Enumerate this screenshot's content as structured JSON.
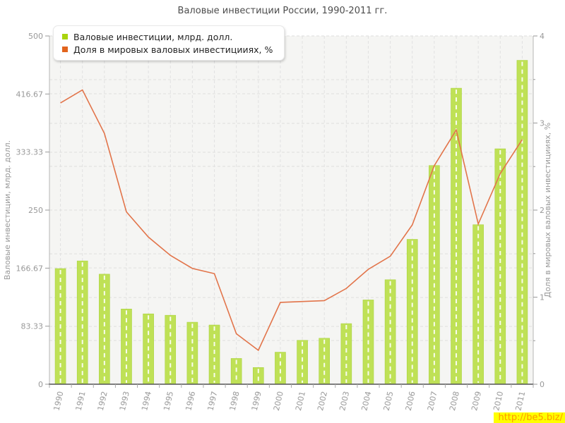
{
  "page": {
    "title": "Валовые инвестиции России, 1990-2011 гг."
  },
  "legend": {
    "items": [
      {
        "label": "Валовые инвестиции, млрд. долл.",
        "color": "#a9d40e"
      },
      {
        "label": "Доля в мировых валовых инвестицииях, %",
        "color": "#e2641d"
      }
    ]
  },
  "watermark": {
    "text": "http://be5.biz/",
    "bg": "#ffff00",
    "fg": "#ff9900"
  },
  "chart_data": {
    "type": "bar",
    "title": "Валовые инвестиции России, 1990-2011 гг.",
    "categories": [
      "1990",
      "1991",
      "1992",
      "1993",
      "1994",
      "1995",
      "1996",
      "1997",
      "1998",
      "1999",
      "2000",
      "2001",
      "2002",
      "2003",
      "2004",
      "2005",
      "2006",
      "2007",
      "2008",
      "2009",
      "2010",
      "2011"
    ],
    "series": [
      {
        "name": "Валовые инвестиции, млрд. долл.",
        "type": "bar",
        "axis": "left",
        "color": "#bfe156",
        "edge_color": "#aad33f",
        "values": [
          166,
          177,
          158,
          108,
          101,
          99,
          89,
          85,
          37,
          24,
          46,
          63,
          66,
          87,
          121,
          150,
          208,
          314,
          425,
          229,
          338,
          465
        ]
      },
      {
        "name": "Доля в мировых валовых инвестицииях, %",
        "type": "line",
        "axis": "right",
        "color": "#e2744a",
        "values": [
          3.23,
          3.38,
          2.88,
          1.98,
          1.69,
          1.48,
          1.33,
          1.27,
          0.58,
          0.39,
          0.94,
          0.95,
          0.96,
          1.1,
          1.32,
          1.47,
          1.83,
          2.51,
          2.92,
          1.84,
          2.42,
          2.81
        ]
      }
    ],
    "left_axis": {
      "label": "Валовые инвестиции, млрд. долл.",
      "min": 0,
      "max": 500,
      "tick_labels": [
        "0",
        "83.33",
        "166.67",
        "250",
        "333.33",
        "416.67",
        "500"
      ]
    },
    "right_axis": {
      "label": "Доля в мировых валовых инвестицииях, %",
      "min": 0,
      "max": 4,
      "tick_labels": [
        "0",
        "1",
        "2",
        "3",
        "4"
      ],
      "minor_step": 0.5
    },
    "grid": true,
    "legend_position": "top-left",
    "plot_bg": "#f5f5f3"
  }
}
